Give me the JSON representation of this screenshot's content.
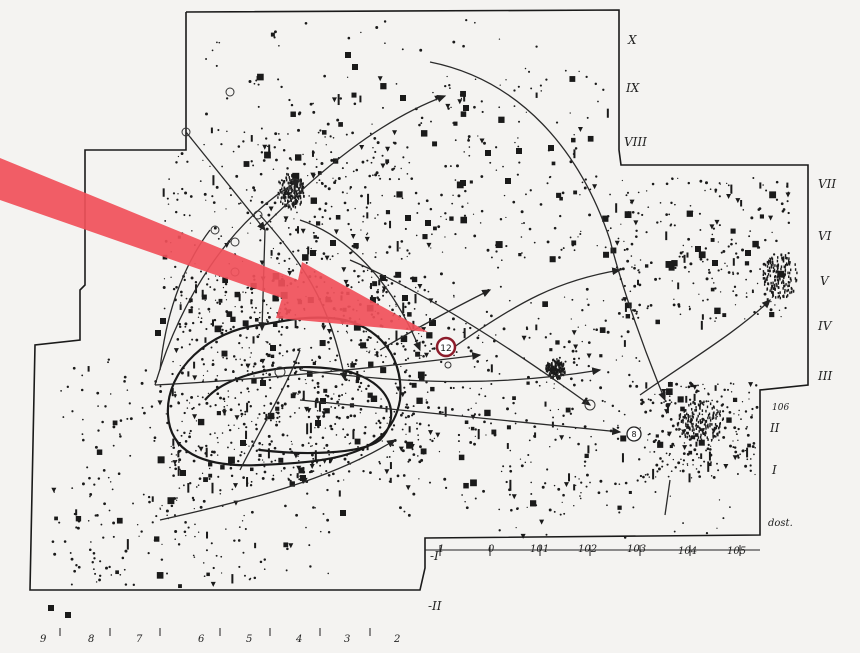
{
  "plan": {
    "row_labels_upper": [
      "X",
      "IX",
      "VIII"
    ],
    "row_labels_right": [
      "VII",
      "VI",
      "V",
      "IV",
      "III",
      "II",
      "I"
    ],
    "row_labels_lower": [
      "-I",
      "-II"
    ],
    "corner_label": "106",
    "dost_label": "dost.",
    "col_labels_bottom_left": [
      "9",
      "8",
      "7",
      "6",
      "5",
      "4",
      "3",
      "2"
    ],
    "col_labels_mid": [
      "1",
      "0",
      "101",
      "102",
      "103",
      "104",
      "105"
    ],
    "marked_find": "12",
    "second_find": "8"
  },
  "colors": {
    "ink": "#1a1a1a",
    "paper": "#f4f3f1",
    "highlight_arrow": "#f0505a",
    "find_circle": "#8c1c2a"
  }
}
